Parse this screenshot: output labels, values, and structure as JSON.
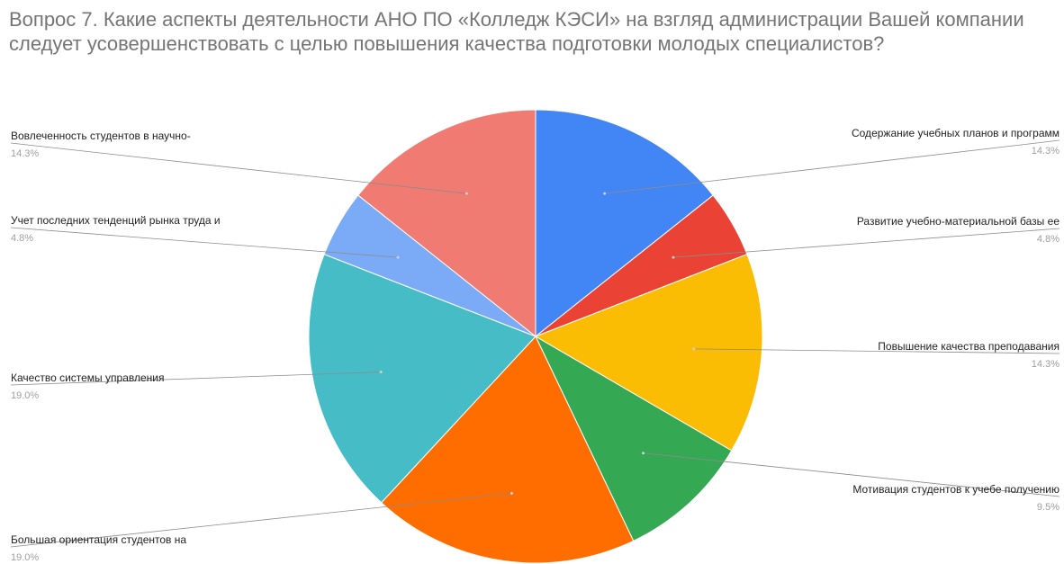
{
  "chart_data": {
    "type": "pie",
    "title": "Вопрос 7. Какие аспекты деятельности АНО ПО «Колледж КЭСИ» на взгляд администрации Вашей компании следует усовершенствовать с целью повышения качества подготовки молодых специалистов?",
    "slices": [
      {
        "label": "Содержание учебных планов и программ",
        "value": 14.3,
        "pct_text": "14.3%",
        "color": "#4285f4"
      },
      {
        "label": "Развитие учебно-материальной базы ее",
        "value": 4.8,
        "pct_text": "4.8%",
        "color": "#ea4335"
      },
      {
        "label": "Повышение качества преподавания",
        "value": 14.3,
        "pct_text": "14.3%",
        "color": "#fbbc04"
      },
      {
        "label": "Мотивация студентов к учебе получению",
        "value": 9.5,
        "pct_text": "9.5%",
        "color": "#34a853"
      },
      {
        "label": "Большая ориентация студентов на",
        "value": 19.0,
        "pct_text": "19.0%",
        "color": "#ff6d01"
      },
      {
        "label": "Качество системы управления",
        "value": 19.0,
        "pct_text": "19.0%",
        "color": "#46bdc6"
      },
      {
        "label": "Учет последних тенденций рынка труда и",
        "value": 4.8,
        "pct_text": "4.8%",
        "color": "#7baaf7"
      },
      {
        "label": "Вовлеченность студентов в научно-",
        "value": 14.3,
        "pct_text": "14.3%",
        "color": "#f07b72"
      }
    ],
    "legend": "none",
    "start_angle_deg": 0,
    "direction": "clockwise"
  }
}
